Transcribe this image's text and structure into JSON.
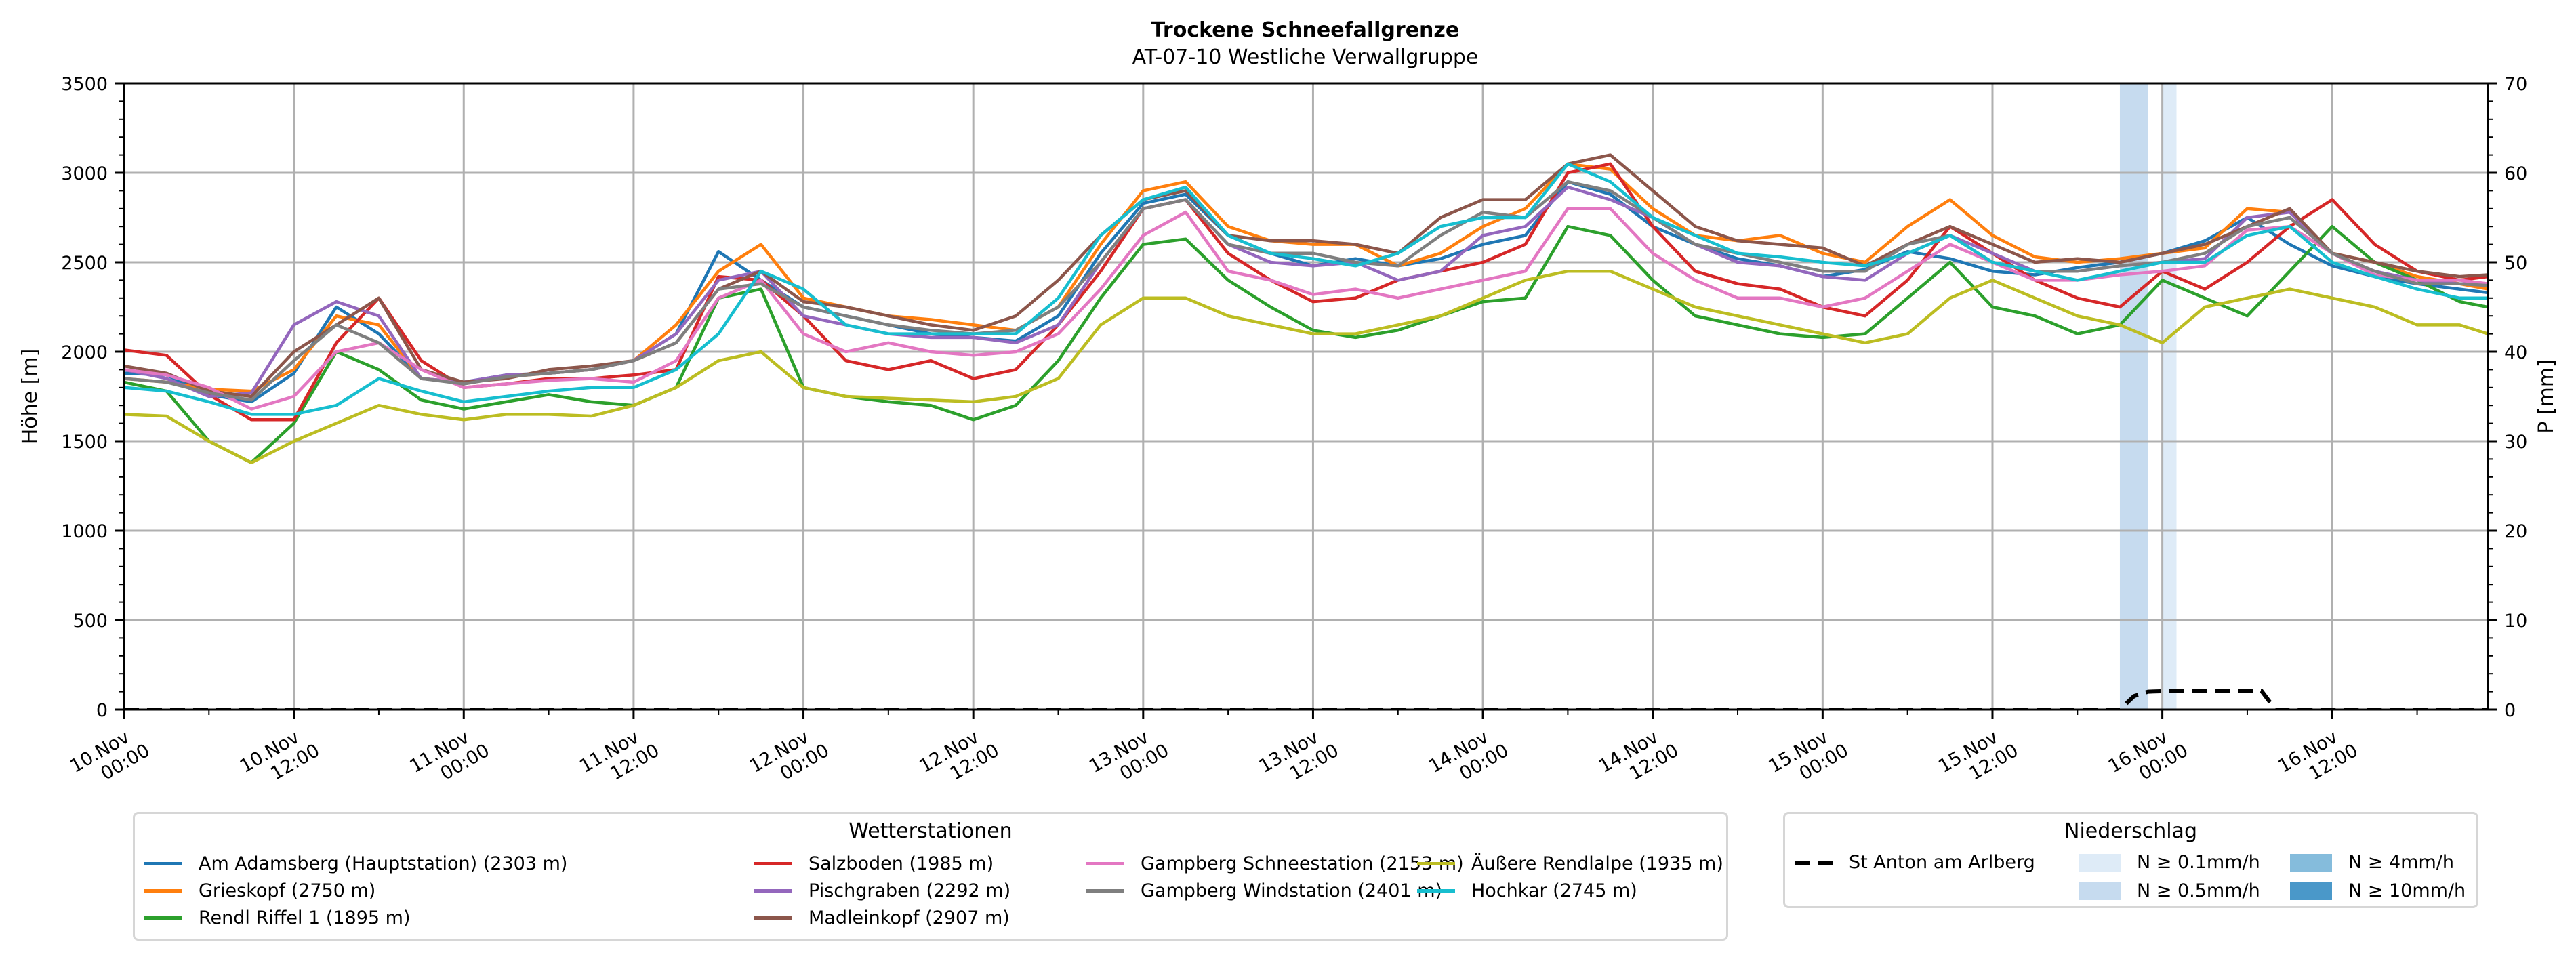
{
  "chart_data": {
    "type": "line",
    "title": "Trockene Schneefallgrenze",
    "subtitle": "AT-07-10 Westliche Verwallgruppe",
    "ylabel": "Höhe [m]",
    "ylabel_right": "P [mm]",
    "ylim": [
      0,
      3500
    ],
    "ylim_right": [
      0,
      70
    ],
    "yticks": [
      "0",
      "500",
      "1000",
      "1500",
      "2000",
      "2500",
      "3000",
      "3500"
    ],
    "yticks_right": [
      "0",
      "10",
      "20",
      "30",
      "40",
      "50",
      "60",
      "70"
    ],
    "x_unit": "hours since 10.Nov 00:00",
    "xlim": [
      0,
      167
    ],
    "grid": true,
    "xticks": [
      {
        "h": 0,
        "line1": "10.Nov",
        "line2": "00:00"
      },
      {
        "h": 12,
        "line1": "10.Nov",
        "line2": "12:00"
      },
      {
        "h": 24,
        "line1": "11.Nov",
        "line2": "00:00"
      },
      {
        "h": 36,
        "line1": "11.Nov",
        "line2": "12:00"
      },
      {
        "h": 48,
        "line1": "12.Nov",
        "line2": "00:00"
      },
      {
        "h": 60,
        "line1": "12.Nov",
        "line2": "12:00"
      },
      {
        "h": 72,
        "line1": "13.Nov",
        "line2": "00:00"
      },
      {
        "h": 84,
        "line1": "13.Nov",
        "line2": "12:00"
      },
      {
        "h": 96,
        "line1": "14.Nov",
        "line2": "00:00"
      },
      {
        "h": 108,
        "line1": "14.Nov",
        "line2": "12:00"
      },
      {
        "h": 120,
        "line1": "15.Nov",
        "line2": "00:00"
      },
      {
        "h": 132,
        "line1": "15.Nov",
        "line2": "12:00"
      },
      {
        "h": 144,
        "line1": "16.Nov",
        "line2": "00:00"
      },
      {
        "h": 156,
        "line1": "16.Nov",
        "line2": "12:00"
      }
    ],
    "x_step_hours": 3,
    "series": [
      {
        "name": "Am Adamsberg (Hauptstation) (2303 m)",
        "color": "#1f77b4",
        "values": [
          1880,
          1870,
          1760,
          1720,
          1880,
          2250,
          2100,
          1850,
          1830,
          1870,
          1880,
          1900,
          1950,
          2100,
          2560,
          2400,
          2250,
          2200,
          2150,
          2100,
          2080,
          2060,
          2200,
          2550,
          2830,
          2880,
          2650,
          2550,
          2480,
          2520,
          2480,
          2520,
          2600,
          2650,
          2950,
          2880,
          2700,
          2600,
          2520,
          2480,
          2420,
          2460,
          2560,
          2520,
          2450,
          2430,
          2470,
          2500,
          2550,
          2620,
          2750,
          2600,
          2480,
          2420,
          2380,
          2350,
          2330
        ]
      },
      {
        "name": "Grieskopf (2750 m)",
        "color": "#ff7f0e",
        "values": [
          1850,
          1830,
          1790,
          1780,
          1900,
          2200,
          2150,
          1850,
          1830,
          1860,
          1880,
          1900,
          1950,
          2150,
          2450,
          2600,
          2300,
          2250,
          2200,
          2180,
          2150,
          2120,
          2250,
          2600,
          2900,
          2950,
          2700,
          2620,
          2600,
          2600,
          2480,
          2550,
          2700,
          2800,
          3050,
          3020,
          2800,
          2650,
          2620,
          2650,
          2550,
          2500,
          2700,
          2850,
          2650,
          2530,
          2500,
          2520,
          2550,
          2580,
          2800,
          2780,
          2550,
          2500,
          2420,
          2380,
          2350
        ]
      },
      {
        "name": "Rendl Riffel 1 (1895 m)",
        "color": "#2ca02c",
        "values": [
          1830,
          1780,
          1500,
          1380,
          1600,
          2000,
          1900,
          1730,
          1680,
          1720,
          1760,
          1720,
          1700,
          1800,
          2300,
          2350,
          1800,
          1750,
          1720,
          1700,
          1620,
          1700,
          1950,
          2300,
          2600,
          2630,
          2400,
          2250,
          2120,
          2080,
          2120,
          2200,
          2280,
          2300,
          2700,
          2650,
          2400,
          2200,
          2150,
          2100,
          2080,
          2100,
          2300,
          2500,
          2250,
          2200,
          2100,
          2150,
          2400,
          2300,
          2200,
          2450,
          2700,
          2500,
          2400,
          2280,
          2250
        ]
      },
      {
        "name": "Salzboden (1985 m)",
        "color": "#d62728",
        "values": [
          2010,
          1980,
          1760,
          1620,
          1620,
          2050,
          2300,
          1950,
          1800,
          1820,
          1850,
          1850,
          1870,
          1900,
          2420,
          2400,
          2200,
          1950,
          1900,
          1950,
          1850,
          1900,
          2150,
          2450,
          2800,
          2850,
          2550,
          2400,
          2280,
          2300,
          2400,
          2450,
          2500,
          2600,
          3000,
          3050,
          2700,
          2450,
          2380,
          2350,
          2250,
          2200,
          2400,
          2700,
          2550,
          2400,
          2300,
          2250,
          2450,
          2350,
          2500,
          2700,
          2850,
          2600,
          2450,
          2400,
          2420
        ]
      },
      {
        "name": "Pischgraben (2292 m)",
        "color": "#9467bd",
        "values": [
          1900,
          1850,
          1750,
          1770,
          2150,
          2280,
          2200,
          1850,
          1830,
          1870,
          1880,
          1900,
          1950,
          2100,
          2400,
          2450,
          2200,
          2150,
          2100,
          2080,
          2080,
          2050,
          2150,
          2500,
          2800,
          2850,
          2600,
          2500,
          2480,
          2500,
          2400,
          2450,
          2650,
          2700,
          2920,
          2850,
          2750,
          2600,
          2500,
          2480,
          2420,
          2400,
          2550,
          2650,
          2550,
          2450,
          2450,
          2480,
          2500,
          2520,
          2750,
          2780,
          2550,
          2450,
          2400,
          2380,
          2380
        ]
      },
      {
        "name": "Madleinkopf (2907 m)",
        "color": "#8c564b",
        "values": [
          1920,
          1880,
          1780,
          1750,
          2000,
          2150,
          2300,
          1900,
          1830,
          1850,
          1900,
          1920,
          1950,
          2050,
          2350,
          2450,
          2280,
          2250,
          2200,
          2150,
          2120,
          2200,
          2400,
          2650,
          2850,
          2900,
          2650,
          2620,
          2620,
          2600,
          2550,
          2750,
          2850,
          2850,
          3050,
          3100,
          2900,
          2700,
          2620,
          2600,
          2580,
          2480,
          2600,
          2700,
          2600,
          2500,
          2520,
          2500,
          2550,
          2600,
          2700,
          2800,
          2550,
          2500,
          2450,
          2420,
          2430
        ]
      },
      {
        "name": "Gampberg Schneestation (2153 m)",
        "color": "#e377c2",
        "values": [
          1900,
          1870,
          1800,
          1680,
          1750,
          2000,
          2050,
          1900,
          1800,
          1820,
          1840,
          1850,
          1830,
          1950,
          2300,
          2400,
          2100,
          2000,
          2050,
          2000,
          1980,
          2000,
          2100,
          2350,
          2650,
          2780,
          2450,
          2400,
          2320,
          2350,
          2300,
          2350,
          2400,
          2450,
          2800,
          2800,
          2550,
          2400,
          2300,
          2300,
          2250,
          2300,
          2450,
          2600,
          2500,
          2400,
          2400,
          2430,
          2450,
          2480,
          2680,
          2700,
          2550,
          2430,
          2400,
          2400,
          2380
        ]
      },
      {
        "name": "Gampberg Windstation (2401 m)",
        "color": "#7f7f7f",
        "values": [
          1850,
          1830,
          1770,
          1730,
          1950,
          2150,
          2050,
          1850,
          1820,
          1860,
          1880,
          1900,
          1950,
          2050,
          2350,
          2380,
          2250,
          2200,
          2150,
          2120,
          2100,
          2120,
          2250,
          2500,
          2800,
          2850,
          2600,
          2550,
          2550,
          2500,
          2480,
          2650,
          2780,
          2750,
          2950,
          2900,
          2750,
          2600,
          2550,
          2500,
          2450,
          2450,
          2600,
          2650,
          2500,
          2450,
          2450,
          2480,
          2500,
          2550,
          2700,
          2750,
          2550,
          2450,
          2380,
          2380,
          2370
        ]
      },
      {
        "name": "Äußere Rendlalpe (1935 m)",
        "color": "#bcbd22",
        "values": [
          1650,
          1640,
          1500,
          1380,
          1500,
          1600,
          1700,
          1650,
          1620,
          1650,
          1650,
          1640,
          1700,
          1800,
          1950,
          2000,
          1800,
          1750,
          1740,
          1730,
          1720,
          1750,
          1850,
          2150,
          2300,
          2300,
          2200,
          2150,
          2100,
          2100,
          2150,
          2200,
          2300,
          2400,
          2450,
          2450,
          2350,
          2250,
          2200,
          2150,
          2100,
          2050,
          2100,
          2300,
          2400,
          2300,
          2200,
          2150,
          2050,
          2250,
          2300,
          2350,
          2300,
          2250,
          2150,
          2150,
          2100
        ]
      },
      {
        "name": "Hochkar (2745 m)",
        "color": "#17becf",
        "values": [
          1800,
          1780,
          1720,
          1650,
          1650,
          1700,
          1850,
          1780,
          1720,
          1750,
          1780,
          1800,
          1800,
          1900,
          2100,
          2450,
          2350,
          2150,
          2100,
          2100,
          2100,
          2100,
          2300,
          2650,
          2850,
          2920,
          2650,
          2550,
          2520,
          2480,
          2550,
          2700,
          2750,
          2750,
          3050,
          2950,
          2750,
          2650,
          2550,
          2530,
          2500,
          2480,
          2550,
          2650,
          2500,
          2450,
          2400,
          2450,
          2500,
          2500,
          2650,
          2700,
          2500,
          2420,
          2350,
          2300,
          2300
        ]
      }
    ],
    "precip_series": {
      "name": "St Anton am Arlberg",
      "color": "#000000",
      "style": "dashed",
      "points": [
        [
          0,
          0
        ],
        [
          140,
          0
        ],
        [
          141,
          0
        ],
        [
          142,
          1.5
        ],
        [
          143,
          2.0
        ],
        [
          145,
          2.1
        ],
        [
          151,
          2.1
        ],
        [
          152,
          0
        ],
        [
          167,
          0
        ]
      ]
    },
    "precip_bands": [
      {
        "start_h": 141,
        "end_h": 143,
        "level": "N ≥ 0.5mm/h",
        "color": "#c6dbef"
      },
      {
        "start_h": 144,
        "end_h": 145,
        "level": "N ≥ 0.1mm/h",
        "color": "#deebf7"
      }
    ]
  },
  "legend_stations": {
    "title": "Wetterstationen"
  },
  "legend_precip": {
    "title": "Niederschlag",
    "line_label": "St Anton am Arlberg",
    "patches": [
      {
        "label": "N ≥ 0.1mm/h",
        "color": "#deebf7"
      },
      {
        "label": "N ≥ 0.5mm/h",
        "color": "#c6dbef"
      },
      {
        "label": "N ≥ 4mm/h",
        "color": "#85bcdc"
      },
      {
        "label": "N ≥ 10mm/h",
        "color": "#4a98c9"
      }
    ]
  }
}
